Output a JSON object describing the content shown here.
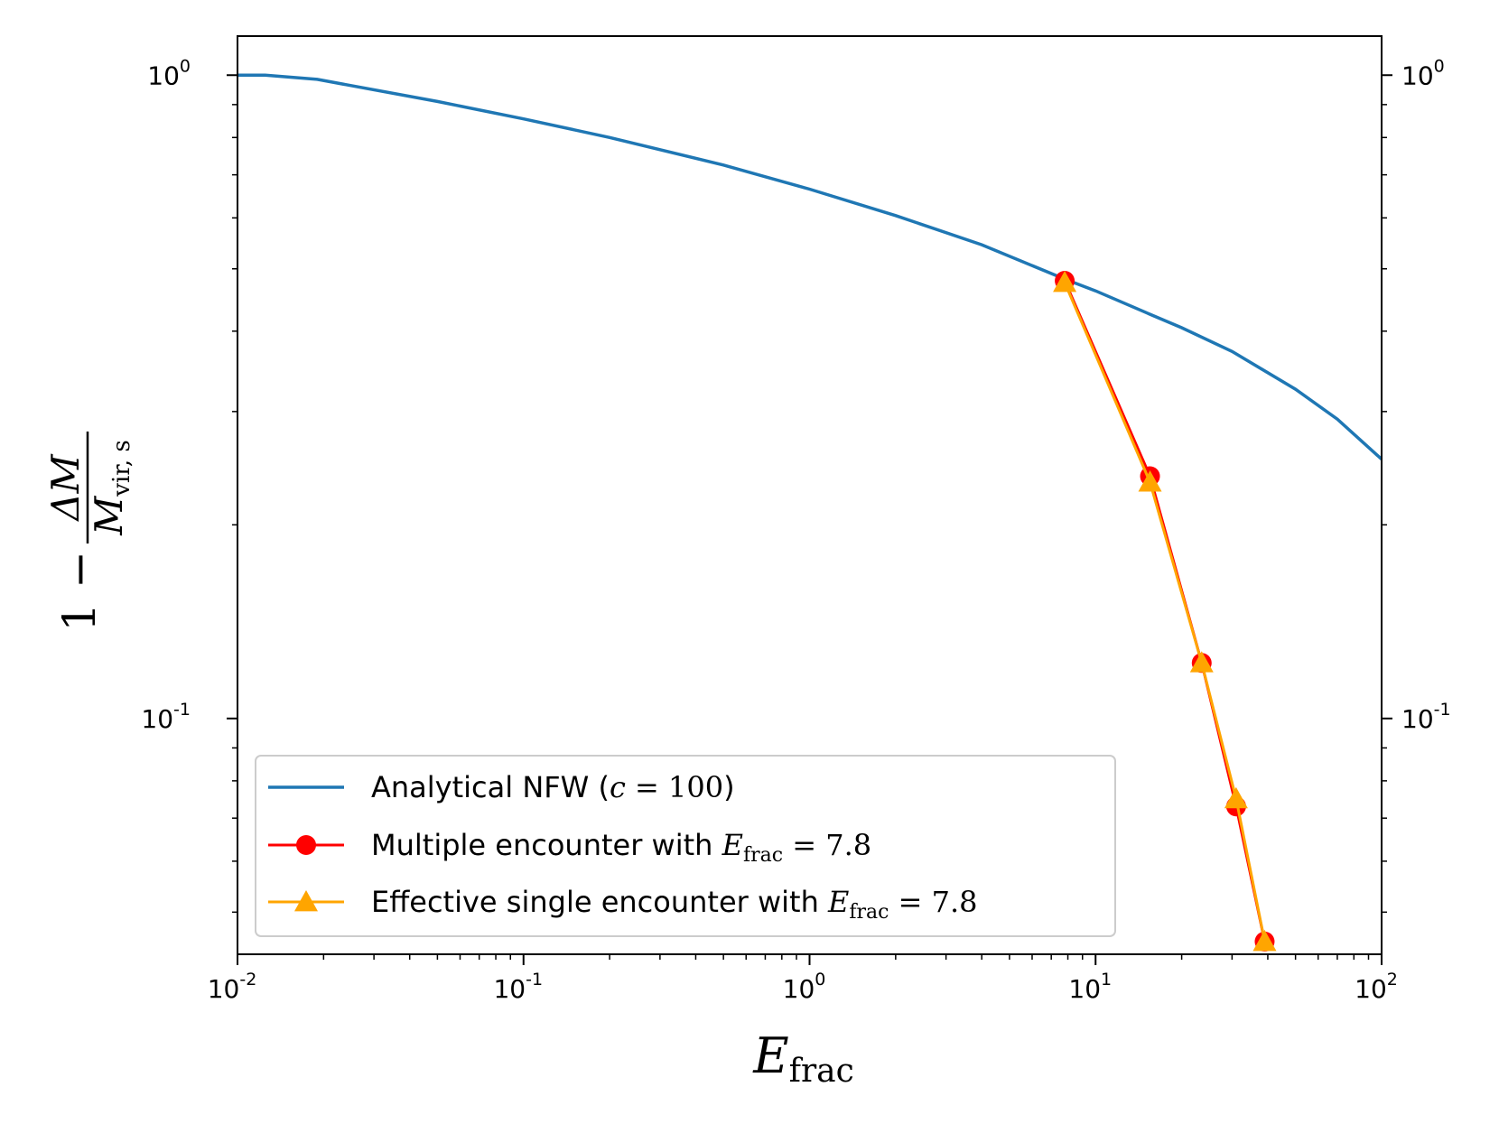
{
  "chart_data": {
    "type": "line",
    "xscale": "log",
    "yscale": "log",
    "xlim": [
      0.01,
      100
    ],
    "ylim": [
      0.043,
      1.15
    ],
    "grid": false,
    "secondary_y_axis": "right (same ticks)",
    "legend_position": "lower-left",
    "x_ticks": [
      {
        "value": 0.01,
        "base": "10",
        "exp": "-2"
      },
      {
        "value": 0.1,
        "base": "10",
        "exp": "-1"
      },
      {
        "value": 1,
        "base": "10",
        "exp": "0"
      },
      {
        "value": 10,
        "base": "10",
        "exp": "1"
      },
      {
        "value": 100,
        "base": "10",
        "exp": "2"
      }
    ],
    "y_ticks": [
      {
        "value": 0.1,
        "base": "10",
        "exp": "-1"
      },
      {
        "value": 1,
        "base": "10",
        "exp": "0"
      }
    ],
    "xlabel": {
      "main": "E",
      "sub": "frac"
    },
    "ylabel": {
      "prefix": "1 − ",
      "numerator": "ΔM",
      "denominator": "M",
      "denominator_sub": "vir, s"
    },
    "series": [
      {
        "name": "Analytical NFW (c = 100)",
        "legend": {
          "text": "Analytical NFW (",
          "math": "c",
          "math_rest": " = 100",
          "suffix": ")"
        },
        "color": "#1f77b4",
        "marker": "none",
        "x": [
          0.01,
          0.0125,
          0.019,
          0.05,
          0.1,
          0.2,
          0.5,
          1,
          2,
          4,
          7.8,
          10,
          15.5,
          20,
          30,
          50,
          70,
          100
        ],
        "y": [
          1.0,
          1.0,
          0.985,
          0.91,
          0.855,
          0.8,
          0.725,
          0.665,
          0.605,
          0.545,
          0.482,
          0.462,
          0.425,
          0.405,
          0.372,
          0.325,
          0.292,
          0.253
        ]
      },
      {
        "name": "Multiple encounter with E_frac = 7.8",
        "legend": {
          "text": "Multiple encounter with ",
          "math": "E",
          "math_sub": "frac",
          "math_rest": " = 7.8"
        },
        "color": "#ff0000",
        "marker": "circle",
        "x": [
          7.8,
          15.5,
          23.5,
          31,
          39
        ],
        "y": [
          0.479,
          0.238,
          0.122,
          0.073,
          0.045
        ]
      },
      {
        "name": "Effective single encounter with E_frac = 7.8",
        "legend": {
          "text": "Effective single encounter with ",
          "math": "E",
          "math_sub": "frac",
          "math_rest": " = 7.8"
        },
        "color": "#ffa500",
        "marker": "triangle",
        "x": [
          7.8,
          15.5,
          23.5,
          31,
          39
        ],
        "y": [
          0.476,
          0.233,
          0.122,
          0.075,
          0.045
        ]
      }
    ]
  }
}
